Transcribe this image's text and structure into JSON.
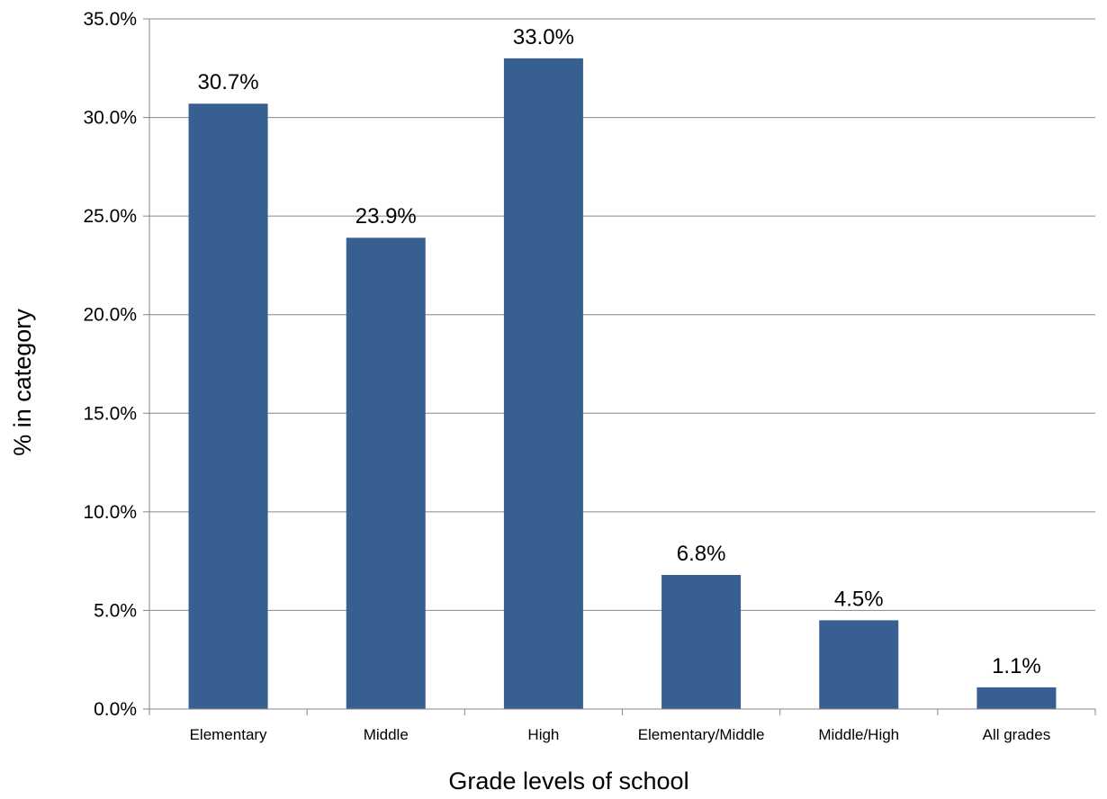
{
  "chart_data": {
    "type": "bar",
    "categories": [
      "Elementary",
      "Middle",
      "High",
      "Elementary/Middle",
      "Middle/High",
      "All grades"
    ],
    "values": [
      30.7,
      23.9,
      33.0,
      6.8,
      4.5,
      1.1
    ],
    "value_labels": [
      "30.7%",
      "23.9%",
      "33.0%",
      "6.8%",
      "4.5%",
      "1.1%"
    ],
    "title": "",
    "xlabel": "Grade levels of school",
    "ylabel": "% in category",
    "ylim": [
      0,
      35
    ],
    "yticks": [
      0,
      5,
      10,
      15,
      20,
      25,
      30,
      35
    ],
    "ytick_labels": [
      "0.0%",
      "5.0%",
      "10.0%",
      "15.0%",
      "20.0%",
      "25.0%",
      "30.0%",
      "35.0%"
    ],
    "grid": true,
    "legend": "none",
    "colors": {
      "bar": "#375F92",
      "grid": "#868686",
      "axis": "#868686"
    }
  }
}
